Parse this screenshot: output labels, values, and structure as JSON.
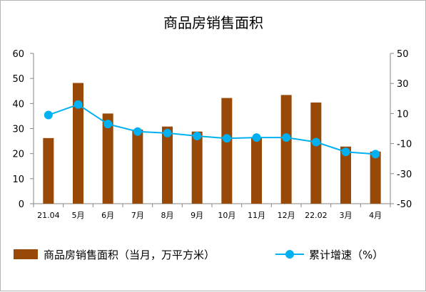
{
  "chart_data": {
    "type": "bar",
    "title": "商品房销售面积",
    "categories": [
      "21.04",
      "5月",
      "6月",
      "7月",
      "8月",
      "9月",
      "10月",
      "11月",
      "12月",
      "22.02",
      "3月",
      "4月"
    ],
    "series": [
      {
        "name": "商品房销售面积（当月，万平方米）",
        "type": "bar",
        "axis": "left",
        "color": "#984807",
        "values": [
          26.2,
          48.2,
          36,
          29.6,
          30.8,
          28.8,
          42.2,
          26.6,
          43.4,
          40.4,
          22.8,
          20.8
        ]
      },
      {
        "name": "累计增速（%）",
        "type": "line",
        "axis": "right",
        "color": "#00b0f0",
        "values": [
          9,
          16,
          3,
          -2,
          -3,
          -5,
          -6.5,
          -6,
          -6,
          -9,
          -15.5,
          -17
        ]
      }
    ],
    "y_left": {
      "min": 0,
      "max": 60,
      "ticks": [
        0,
        10,
        20,
        30,
        40,
        50,
        60
      ]
    },
    "y_right": {
      "min": -50,
      "max": 50,
      "ticks": [
        -50,
        -30,
        -10,
        10,
        30,
        50
      ]
    },
    "grid": false,
    "legend": "bottom"
  }
}
